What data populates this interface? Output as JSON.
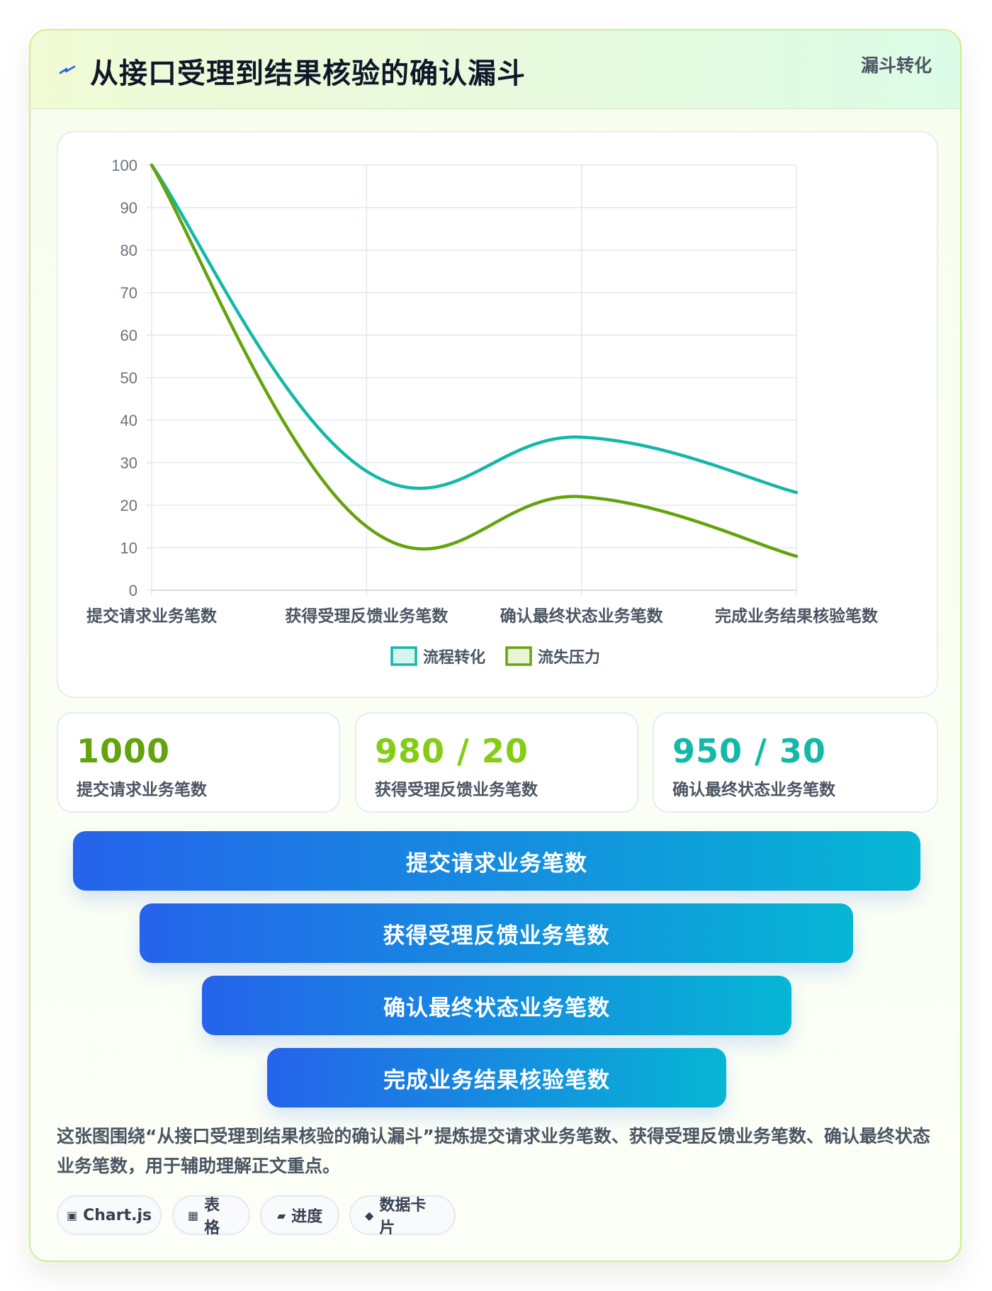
{
  "header": {
    "title": "从接口受理到结果核验的确认漏斗",
    "tag": "漏斗转化",
    "icon": "lightning-icon"
  },
  "chart_data": {
    "type": "line",
    "title": "",
    "xlabel": "",
    "ylabel": "",
    "categories": [
      "提交请求业务笔数",
      "获得受理反馈业务笔数",
      "确认最终状态业务笔数",
      "完成业务结果核验笔数"
    ],
    "ylim": [
      0,
      100
    ],
    "yticks": [
      0,
      10,
      20,
      30,
      40,
      50,
      60,
      70,
      80,
      90,
      100
    ],
    "grid": true,
    "legend_position": "bottom",
    "series": [
      {
        "name": "流程转化",
        "values": [
          100,
          28,
          36,
          23
        ],
        "color": "#14b8a6"
      },
      {
        "name": "流失压力",
        "values": [
          100,
          15,
          22,
          8
        ],
        "color": "#65a30d"
      }
    ]
  },
  "stats": [
    {
      "value": "1000",
      "label": "提交请求业务笔数",
      "color": "#65a30d"
    },
    {
      "value": "980 / 20",
      "label": "获得受理反馈业务笔数",
      "color": "#84cc16"
    },
    {
      "value": "950 / 30",
      "label": "确认最终状态业务笔数",
      "color": "#14b8a6"
    }
  ],
  "funnel": [
    {
      "label": "提交请求业务笔数"
    },
    {
      "label": "获得受理反馈业务笔数"
    },
    {
      "label": "确认最终状态业务笔数"
    },
    {
      "label": "完成业务结果核验笔数"
    }
  ],
  "description": "这张图围绕“从接口受理到结果核验的确认漏斗”提炼提交请求业务笔数、获得受理反馈业务笔数、确认最终状态业务笔数，用于辅助理解正文重点。",
  "chips": [
    {
      "icon": "▣",
      "label": "Chart.js"
    },
    {
      "icon": "▦",
      "label": "表格"
    },
    {
      "icon": "▰",
      "label": "进度"
    },
    {
      "icon": "◆",
      "label": "数据卡片"
    }
  ]
}
